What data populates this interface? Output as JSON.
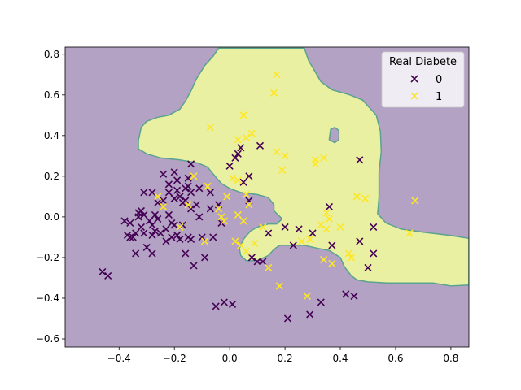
{
  "chart_data": {
    "type": "scatter",
    "title": "",
    "xlabel": "",
    "ylabel": "",
    "xlim": [
      -0.595,
      0.865
    ],
    "ylim": [
      -0.64,
      0.835
    ],
    "x_ticks": [
      -0.4,
      -0.2,
      0.0,
      0.2,
      0.4,
      0.6,
      0.8
    ],
    "x_tick_labels": [
      "−0.4",
      "−0.2",
      "0.0",
      "0.2",
      "0.4",
      "0.6",
      "0.8"
    ],
    "y_ticks": [
      -0.6,
      -0.4,
      -0.2,
      0.0,
      0.2,
      0.4,
      0.6,
      0.8
    ],
    "y_tick_labels": [
      "−0.6",
      "−0.4",
      "−0.2",
      "0.0",
      "0.2",
      "0.4",
      "0.6",
      "0.8"
    ],
    "grid": false,
    "background_region": {
      "class": "0",
      "color": "#b3a2c4"
    },
    "decision_region_class1": {
      "class": "1",
      "fill": "#eaf0a2",
      "edge": "#5aa38f",
      "outer_boundary": [
        [
          -0.04,
          0.83
        ],
        [
          0.27,
          0.83
        ],
        [
          0.285,
          0.77
        ],
        [
          0.33,
          0.665
        ],
        [
          0.37,
          0.625
        ],
        [
          0.435,
          0.6
        ],
        [
          0.48,
          0.575
        ],
        [
          0.53,
          0.5
        ],
        [
          0.545,
          0.42
        ],
        [
          0.548,
          0.32
        ],
        [
          0.54,
          0.22
        ],
        [
          0.54,
          0.1
        ],
        [
          0.535,
          0.015
        ],
        [
          0.565,
          -0.03
        ],
        [
          0.62,
          -0.06
        ],
        [
          0.7,
          -0.075
        ],
        [
          0.79,
          -0.09
        ],
        [
          0.865,
          -0.105
        ],
        [
          0.865,
          -0.335
        ],
        [
          0.8,
          -0.34
        ],
        [
          0.735,
          -0.325
        ],
        [
          0.65,
          -0.325
        ],
        [
          0.57,
          -0.325
        ],
        [
          0.5,
          -0.32
        ],
        [
          0.46,
          -0.31
        ],
        [
          0.44,
          -0.29
        ],
        [
          0.415,
          -0.245
        ],
        [
          0.4,
          -0.2
        ],
        [
          0.36,
          -0.165
        ],
        [
          0.32,
          -0.155
        ],
        [
          0.27,
          -0.14
        ],
        [
          0.23,
          -0.14
        ],
        [
          0.18,
          -0.14
        ],
        [
          0.16,
          -0.16
        ],
        [
          0.14,
          -0.19
        ],
        [
          0.1,
          -0.215
        ],
        [
          0.06,
          -0.215
        ],
        [
          0.04,
          -0.19
        ],
        [
          0.035,
          -0.155
        ],
        [
          0.05,
          -0.11
        ],
        [
          0.075,
          -0.07
        ],
        [
          0.1,
          -0.05
        ],
        [
          0.14,
          -0.035
        ],
        [
          0.17,
          -0.035
        ],
        [
          0.19,
          -0.01
        ],
        [
          0.175,
          0.01
        ],
        [
          0.16,
          0.03
        ],
        [
          0.16,
          0.06
        ],
        [
          0.14,
          0.095
        ],
        [
          0.1,
          0.11
        ],
        [
          0.07,
          0.115
        ],
        [
          0.04,
          0.12
        ],
        [
          0.0,
          0.14
        ],
        [
          -0.03,
          0.165
        ],
        [
          -0.05,
          0.195
        ],
        [
          -0.08,
          0.245
        ],
        [
          -0.115,
          0.265
        ],
        [
          -0.18,
          0.28
        ],
        [
          -0.25,
          0.29
        ],
        [
          -0.3,
          0.31
        ],
        [
          -0.33,
          0.335
        ],
        [
          -0.33,
          0.375
        ],
        [
          -0.32,
          0.44
        ],
        [
          -0.3,
          0.47
        ],
        [
          -0.26,
          0.49
        ],
        [
          -0.22,
          0.5
        ],
        [
          -0.18,
          0.53
        ],
        [
          -0.16,
          0.57
        ],
        [
          -0.14,
          0.62
        ],
        [
          -0.12,
          0.68
        ],
        [
          -0.09,
          0.745
        ],
        [
          -0.06,
          0.79
        ]
      ],
      "hole": [
        [
          0.36,
          0.38
        ],
        [
          0.365,
          0.43
        ],
        [
          0.38,
          0.44
        ],
        [
          0.395,
          0.425
        ],
        [
          0.395,
          0.38
        ],
        [
          0.38,
          0.365
        ]
      ]
    },
    "series": [
      {
        "name": "0",
        "color": "#440154",
        "points": [
          [
            -0.46,
            -0.27
          ],
          [
            -0.44,
            -0.29
          ],
          [
            -0.38,
            -0.02
          ],
          [
            -0.37,
            -0.09
          ],
          [
            -0.36,
            -0.03
          ],
          [
            -0.36,
            -0.1
          ],
          [
            -0.35,
            -0.1
          ],
          [
            -0.34,
            -0.08
          ],
          [
            -0.34,
            -0.18
          ],
          [
            -0.33,
            0.02
          ],
          [
            -0.33,
            0.0
          ],
          [
            -0.32,
            0.03
          ],
          [
            -0.32,
            -0.05
          ],
          [
            -0.31,
            0.12
          ],
          [
            -0.31,
            0.01
          ],
          [
            -0.31,
            -0.08
          ],
          [
            -0.3,
            -0.15
          ],
          [
            -0.29,
            -0.02
          ],
          [
            -0.28,
            0.12
          ],
          [
            -0.28,
            -0.04
          ],
          [
            -0.28,
            -0.09
          ],
          [
            -0.28,
            -0.18
          ],
          [
            -0.27,
            0.01
          ],
          [
            -0.27,
            -0.07
          ],
          [
            -0.26,
            0.07
          ],
          [
            -0.26,
            -0.01
          ],
          [
            -0.25,
            -0.08
          ],
          [
            -0.24,
            0.21
          ],
          [
            -0.24,
            0.08
          ],
          [
            -0.23,
            -0.06
          ],
          [
            -0.23,
            -0.12
          ],
          [
            -0.22,
            0.16
          ],
          [
            -0.22,
            0.12
          ],
          [
            -0.22,
            0.01
          ],
          [
            -0.21,
            -0.03
          ],
          [
            -0.21,
            -0.1
          ],
          [
            -0.2,
            0.22
          ],
          [
            -0.2,
            0.09
          ],
          [
            -0.2,
            -0.04
          ],
          [
            -0.19,
            0.18
          ],
          [
            -0.19,
            0.13
          ],
          [
            -0.19,
            -0.09
          ],
          [
            -0.18,
            0.1
          ],
          [
            -0.18,
            -0.11
          ],
          [
            -0.17,
            0.07
          ],
          [
            -0.17,
            -0.04
          ],
          [
            -0.16,
            0.14
          ],
          [
            -0.16,
            0.08
          ],
          [
            -0.16,
            -0.18
          ],
          [
            -0.15,
            0.19
          ],
          [
            -0.15,
            0.15
          ],
          [
            -0.15,
            -0.1
          ],
          [
            -0.14,
            0.26
          ],
          [
            -0.14,
            0.12
          ],
          [
            -0.14,
            0.04
          ],
          [
            -0.14,
            -0.11
          ],
          [
            -0.13,
            -0.24
          ],
          [
            -0.12,
            0.06
          ],
          [
            -0.11,
            0.14
          ],
          [
            -0.11,
            0.0
          ],
          [
            -0.1,
            -0.1
          ],
          [
            -0.09,
            -0.2
          ],
          [
            -0.07,
            0.12
          ],
          [
            -0.07,
            0.04
          ],
          [
            -0.06,
            -0.1
          ],
          [
            -0.05,
            -0.44
          ],
          [
            -0.04,
            0.06
          ],
          [
            -0.03,
            -0.03
          ],
          [
            -0.02,
            -0.42
          ],
          [
            0.0,
            0.25
          ],
          [
            0.01,
            -0.43
          ],
          [
            0.02,
            0.29
          ],
          [
            0.03,
            0.31
          ],
          [
            0.04,
            0.34
          ],
          [
            0.05,
            0.17
          ],
          [
            0.07,
            0.2
          ],
          [
            0.07,
            0.08
          ],
          [
            0.08,
            -0.2
          ],
          [
            0.1,
            -0.22
          ],
          [
            0.11,
            0.35
          ],
          [
            0.12,
            -0.22
          ],
          [
            0.14,
            -0.08
          ],
          [
            0.2,
            -0.05
          ],
          [
            0.21,
            -0.5
          ],
          [
            0.23,
            -0.14
          ],
          [
            0.25,
            -0.06
          ],
          [
            0.29,
            -0.48
          ],
          [
            0.3,
            -0.08
          ],
          [
            0.33,
            -0.42
          ],
          [
            0.36,
            0.05
          ],
          [
            0.37,
            -0.14
          ],
          [
            0.42,
            -0.38
          ],
          [
            0.45,
            -0.39
          ],
          [
            0.47,
            0.28
          ],
          [
            0.47,
            -0.12
          ],
          [
            0.5,
            -0.25
          ],
          [
            0.52,
            -0.05
          ],
          [
            0.52,
            -0.18
          ]
        ]
      },
      {
        "name": "1",
        "color": "#fde725",
        "points": [
          [
            -0.26,
            0.1
          ],
          [
            -0.24,
            0.05
          ],
          [
            -0.18,
            -0.05
          ],
          [
            -0.15,
            0.06
          ],
          [
            -0.13,
            0.2
          ],
          [
            -0.09,
            -0.12
          ],
          [
            -0.08,
            0.15
          ],
          [
            -0.07,
            0.44
          ],
          [
            -0.04,
            0.04
          ],
          [
            -0.03,
            0.0
          ],
          [
            -0.02,
            -0.02
          ],
          [
            -0.01,
            0.1
          ],
          [
            0.01,
            0.19
          ],
          [
            0.02,
            -0.12
          ],
          [
            0.03,
            0.38
          ],
          [
            0.03,
            0.18
          ],
          [
            0.03,
            0.01
          ],
          [
            0.04,
            -0.14
          ],
          [
            0.05,
            0.5
          ],
          [
            0.05,
            -0.02
          ],
          [
            0.06,
            0.39
          ],
          [
            0.06,
            0.11
          ],
          [
            0.06,
            -0.17
          ],
          [
            0.07,
            0.06
          ],
          [
            0.08,
            0.41
          ],
          [
            0.09,
            -0.13
          ],
          [
            0.12,
            -0.05
          ],
          [
            0.14,
            -0.25
          ],
          [
            0.16,
            0.61
          ],
          [
            0.17,
            0.7
          ],
          [
            0.17,
            0.32
          ],
          [
            0.18,
            -0.34
          ],
          [
            0.19,
            0.23
          ],
          [
            0.2,
            0.3
          ],
          [
            0.26,
            -0.12
          ],
          [
            0.28,
            -0.39
          ],
          [
            0.29,
            -0.11
          ],
          [
            0.31,
            0.26
          ],
          [
            0.31,
            0.28
          ],
          [
            0.33,
            -0.04
          ],
          [
            0.34,
            0.29
          ],
          [
            0.34,
            -0.21
          ],
          [
            0.35,
            0.02
          ],
          [
            0.35,
            -0.06
          ],
          [
            0.36,
            -0.01
          ],
          [
            0.37,
            -0.23
          ],
          [
            0.4,
            -0.05
          ],
          [
            0.43,
            -0.18
          ],
          [
            0.44,
            -0.2
          ],
          [
            0.46,
            0.1
          ],
          [
            0.49,
            0.09
          ],
          [
            0.65,
            -0.08
          ],
          [
            0.67,
            0.08
          ]
        ]
      }
    ],
    "legend": {
      "title": "Real Diabete",
      "placement": "top-right",
      "entries": [
        "0",
        "1"
      ]
    }
  }
}
